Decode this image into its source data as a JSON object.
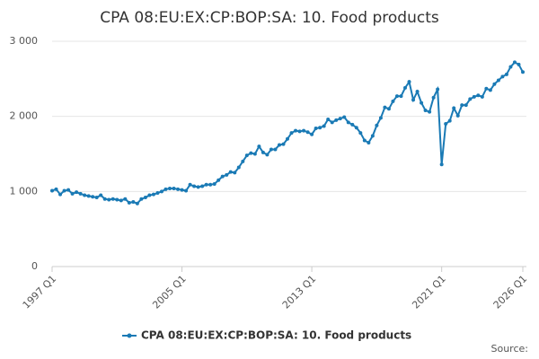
{
  "chart_data": {
    "type": "line",
    "title": "CPA 08:EU:EX:CP:BOP:SA: 10. Food products",
    "source": "Source:",
    "categories": [
      "1997 Q1",
      null,
      null,
      null,
      null,
      null,
      null,
      null,
      null,
      null,
      null,
      null,
      null,
      null,
      null,
      null,
      null,
      null,
      null,
      null,
      null,
      null,
      null,
      null,
      null,
      null,
      null,
      null,
      null,
      null,
      null,
      null,
      "2005 Q1",
      null,
      null,
      null,
      null,
      null,
      null,
      null,
      null,
      null,
      null,
      null,
      null,
      null,
      null,
      null,
      null,
      null,
      null,
      null,
      null,
      null,
      null,
      null,
      null,
      null,
      null,
      null,
      null,
      null,
      null,
      null,
      "2013 Q1",
      null,
      null,
      null,
      null,
      null,
      null,
      null,
      null,
      null,
      null,
      null,
      null,
      null,
      null,
      null,
      null,
      null,
      null,
      null,
      null,
      null,
      null,
      null,
      null,
      null,
      null,
      null,
      null,
      null,
      null,
      null,
      "2021 Q1",
      null,
      null,
      null,
      null,
      null,
      null,
      null,
      null,
      null,
      null,
      null,
      null,
      null,
      null,
      null,
      null,
      null,
      null,
      null,
      "2026 Q1"
    ],
    "series": [
      {
        "name": "CPA 08:EU:EX:CP:BOP:SA: 10. Food products",
        "color": "#1a7ab5",
        "values": [
          1010,
          1030,
          960,
          1010,
          1020,
          970,
          990,
          970,
          950,
          940,
          930,
          920,
          950,
          900,
          890,
          900,
          890,
          880,
          900,
          850,
          860,
          840,
          900,
          920,
          950,
          960,
          980,
          1000,
          1030,
          1040,
          1040,
          1030,
          1020,
          1010,
          1090,
          1070,
          1060,
          1070,
          1090,
          1090,
          1100,
          1150,
          1200,
          1220,
          1260,
          1250,
          1320,
          1400,
          1480,
          1510,
          1500,
          1600,
          1520,
          1490,
          1560,
          1560,
          1620,
          1630,
          1700,
          1780,
          1810,
          1800,
          1810,
          1790,
          1760,
          1840,
          1850,
          1870,
          1960,
          1920,
          1950,
          1970,
          1990,
          1920,
          1890,
          1850,
          1780,
          1680,
          1650,
          1740,
          1880,
          1980,
          2120,
          2100,
          2200,
          2270,
          2270,
          2380,
          2460,
          2220,
          2330,
          2180,
          2080,
          2060,
          2250,
          2360,
          1360,
          1900,
          1940,
          2110,
          2010,
          2150,
          2150,
          2230,
          2260,
          2280,
          2260,
          2370,
          2350,
          2430,
          2480,
          2530,
          2560,
          2660,
          2720,
          2690,
          2590
        ]
      }
    ],
    "ylim": [
      0,
      3000
    ],
    "yticks": [
      {
        "value": 0,
        "label": "0"
      },
      {
        "value": 1000,
        "label": "1 000"
      },
      {
        "value": 2000,
        "label": "2 000"
      },
      {
        "value": 3000,
        "label": "3 000"
      }
    ],
    "grid": true
  }
}
